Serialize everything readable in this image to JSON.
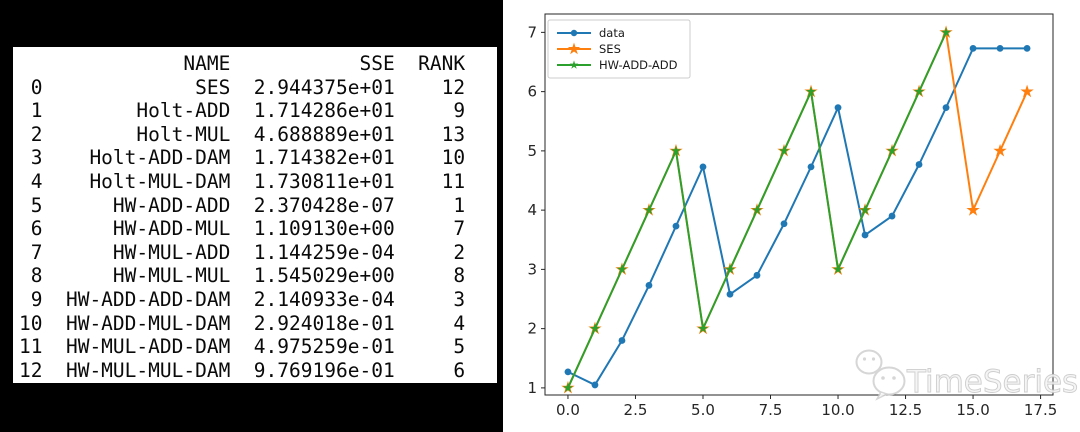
{
  "console": {
    "table": {
      "columns": [
        "NAME",
        "SSE",
        "RANK"
      ],
      "rows": [
        [
          "0",
          "SES",
          "2.944375e+01",
          "12"
        ],
        [
          "1",
          "Holt-ADD",
          "1.714286e+01",
          "9"
        ],
        [
          "2",
          "Holt-MUL",
          "4.688889e+01",
          "13"
        ],
        [
          "3",
          "Holt-ADD-DAM",
          "1.714382e+01",
          "10"
        ],
        [
          "4",
          "Holt-MUL-DAM",
          "1.730811e+01",
          "11"
        ],
        [
          "5",
          "HW-ADD-ADD",
          "2.370428e-07",
          "1"
        ],
        [
          "6",
          "HW-ADD-MUL",
          "1.109130e+00",
          "7"
        ],
        [
          "7",
          "HW-MUL-ADD",
          "1.144259e-04",
          "2"
        ],
        [
          "8",
          "HW-MUL-MUL",
          "1.545029e+00",
          "8"
        ],
        [
          "9",
          "HW-ADD-ADD-DAM",
          "2.140933e-04",
          "3"
        ],
        [
          "10",
          "HW-ADD-MUL-DAM",
          "2.924018e-01",
          "4"
        ],
        [
          "11",
          "HW-MUL-ADD-DAM",
          "4.975259e-01",
          "5"
        ],
        [
          "12",
          "HW-MUL-MUL-DAM",
          "9.769196e-01",
          "6"
        ]
      ]
    }
  },
  "chart_data": {
    "type": "line",
    "title": "",
    "xlabel": "",
    "ylabel": "",
    "grid": false,
    "legend_position": "upper-left",
    "xlim": [
      -0.85,
      17.96
    ],
    "ylim": [
      0.88,
      7.31
    ],
    "xticks": [
      0,
      2.5,
      5,
      7.5,
      10,
      12.5,
      15,
      17.5
    ],
    "xtick_labels": [
      "0.0",
      "2.5",
      "5.0",
      "7.5",
      "10.0",
      "12.5",
      "15.0",
      "17.5"
    ],
    "yticks": [
      1,
      2,
      3,
      4,
      5,
      6,
      7
    ],
    "ytick_labels": [
      "1",
      "2",
      "3",
      "4",
      "5",
      "6",
      "7"
    ],
    "watermark_text": "TimeSeries",
    "colors": {
      "data": "#1f77b4",
      "ses": "#ff7f0e",
      "hw_add_add": "#2ca02c"
    },
    "series": [
      {
        "name": "data",
        "color": "#1f77b4",
        "marker": "circle",
        "x": [
          0,
          1,
          2,
          3,
          4,
          5,
          6,
          7,
          8,
          9,
          10,
          11,
          12,
          13,
          14,
          15,
          16,
          17
        ],
        "y": [
          1.27,
          1.05,
          1.8,
          2.73,
          3.73,
          4.73,
          2.58,
          2.9,
          3.77,
          4.73,
          5.73,
          3.58,
          3.9,
          4.77,
          5.73,
          6.73,
          6.73,
          6.73
        ]
      },
      {
        "name": "SES",
        "color": "#ff7f0e",
        "marker": "star",
        "x": [
          0,
          1,
          2,
          3,
          4,
          5,
          6,
          7,
          8,
          9,
          10,
          11,
          12,
          13,
          14,
          15,
          16,
          17
        ],
        "y": [
          1,
          2,
          3,
          4,
          5,
          2,
          3,
          4,
          5,
          6,
          3,
          4,
          5,
          6,
          7,
          4,
          5,
          6
        ]
      },
      {
        "name": "HW-ADD-ADD",
        "color": "#2ca02c",
        "marker": "star",
        "x": [
          0,
          1,
          2,
          3,
          4,
          5,
          6,
          7,
          8,
          9,
          10,
          11,
          12,
          13,
          14
        ],
        "y": [
          1,
          2,
          3,
          4,
          5,
          2,
          3,
          4,
          5,
          6,
          3,
          4,
          5,
          6,
          7
        ]
      }
    ]
  }
}
